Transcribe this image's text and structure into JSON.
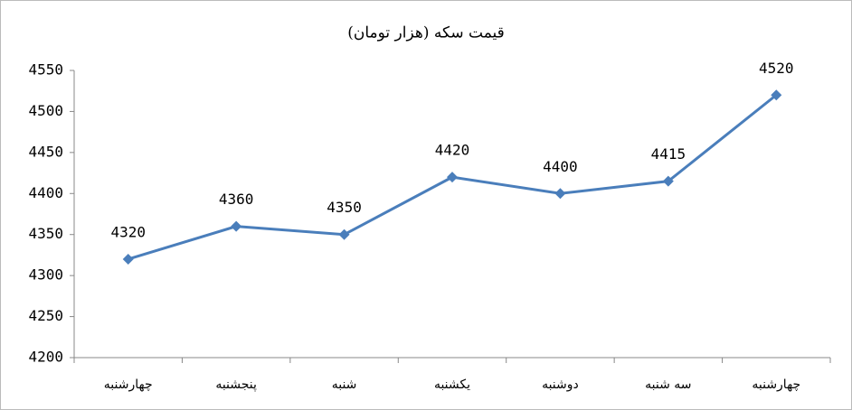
{
  "chart_data": {
    "type": "line",
    "title": "قیمت سکه (هزار تومان)",
    "categories": [
      "چهارشنبه",
      "پنجشنبه",
      "شنبه",
      "یکشنبه",
      "دوشنبه",
      "سه شنبه",
      "چهارشنبه"
    ],
    "series": [
      {
        "name": "قیمت سکه",
        "color": "#4a7ebb",
        "values": [
          4320,
          4360,
          4350,
          4420,
          4400,
          4415,
          4520
        ]
      }
    ],
    "ylim": [
      4200,
      4550
    ],
    "yticks": [
      4200,
      4250,
      4300,
      4350,
      4400,
      4450,
      4500,
      4550
    ],
    "grid": false,
    "legend": false
  }
}
